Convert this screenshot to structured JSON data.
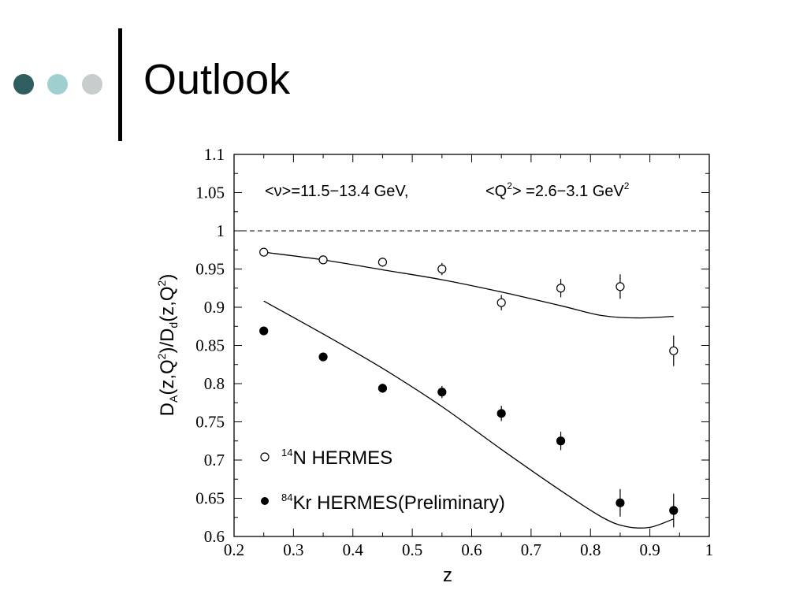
{
  "slide": {
    "title": "Outlook",
    "bullet_colors": [
      "#2f5d60",
      "#9fcfcf",
      "#c9cccc"
    ]
  },
  "chart_data": {
    "type": "scatter",
    "title": "",
    "annotation": {
      "nu": "<ν>=11.5−13.4 GeV,",
      "q2_prefix": "<Q",
      "q2_suffix": "> =2.6−3.1 GeV"
    },
    "xlabel": "z",
    "ylabel_parts": {
      "a": "D",
      "a_sub": "A",
      "b": "(z,Q",
      "b_sup": "2",
      "c": ")/D",
      "c_sub": "d",
      "d": "(z,Q",
      "d_sup": "2",
      "e": ")"
    },
    "xlim": [
      0.2,
      1.0
    ],
    "ylim": [
      0.6,
      1.1
    ],
    "x_ticks": [
      "0.2",
      "0.3",
      "0.4",
      "0.5",
      "0.6",
      "0.7",
      "0.8",
      "0.9",
      "1"
    ],
    "y_ticks": [
      "0.6",
      "0.65",
      "0.7",
      "0.75",
      "0.8",
      "0.85",
      "0.9",
      "0.95",
      "1",
      "1.05",
      "1.1"
    ],
    "reference_line": {
      "y": 1.0,
      "style": "dashed"
    },
    "legend_placement": "bottom-left",
    "series": [
      {
        "name_sup": "14",
        "name": "N HERMES",
        "marker": "open-circle",
        "x": [
          0.25,
          0.35,
          0.45,
          0.55,
          0.65,
          0.75,
          0.85,
          0.94
        ],
        "y": [
          0.972,
          0.962,
          0.959,
          0.95,
          0.906,
          0.925,
          0.927,
          0.843
        ],
        "yerr": [
          0.004,
          0.005,
          0.006,
          0.008,
          0.01,
          0.012,
          0.016,
          0.02
        ]
      },
      {
        "name_sup": "84",
        "name": "Kr HERMES(Preliminary)",
        "marker": "filled-circle",
        "x": [
          0.25,
          0.35,
          0.45,
          0.55,
          0.65,
          0.75,
          0.85,
          0.94
        ],
        "y": [
          0.869,
          0.835,
          0.794,
          0.789,
          0.761,
          0.725,
          0.644,
          0.634
        ],
        "yerr": [
          0.003,
          0.004,
          0.006,
          0.008,
          0.01,
          0.012,
          0.018,
          0.022
        ]
      }
    ],
    "curves": [
      {
        "for": "N",
        "x": [
          0.25,
          0.35,
          0.45,
          0.55,
          0.65,
          0.75,
          0.82,
          0.88,
          0.94
        ],
        "y": [
          0.972,
          0.962,
          0.949,
          0.936,
          0.92,
          0.902,
          0.889,
          0.886,
          0.888
        ]
      },
      {
        "for": "Kr",
        "x": [
          0.25,
          0.35,
          0.45,
          0.55,
          0.65,
          0.75,
          0.82,
          0.86,
          0.9,
          0.94
        ],
        "y": [
          0.908,
          0.865,
          0.82,
          0.77,
          0.714,
          0.66,
          0.625,
          0.613,
          0.612,
          0.623
        ]
      }
    ]
  }
}
